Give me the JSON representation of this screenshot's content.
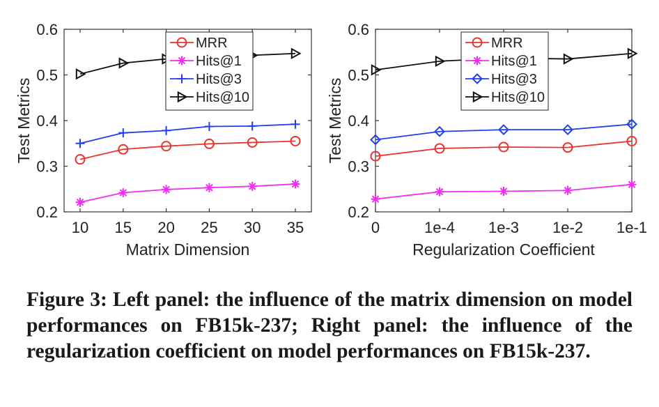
{
  "chart_data": [
    {
      "type": "line",
      "xlabel": "Matrix Dimension",
      "ylabel": "Test Metrics",
      "x": [
        "10",
        "15",
        "20",
        "25",
        "30",
        "35"
      ],
      "ylim": [
        0.2,
        0.6
      ],
      "yticks": [
        "0.2",
        "0.3",
        "0.4",
        "0.5",
        "0.6"
      ],
      "legend": "top-center",
      "series": [
        {
          "name": "MRR",
          "marker": "circle",
          "color": "#e8332e",
          "values": [
            0.315,
            0.337,
            0.344,
            0.349,
            0.352,
            0.355
          ]
        },
        {
          "name": "Hits@1",
          "marker": "asterisk",
          "color": "#ee2ef0",
          "values": [
            0.221,
            0.242,
            0.249,
            0.253,
            0.256,
            0.261
          ]
        },
        {
          "name": "Hits@3",
          "marker": "plus",
          "color": "#1f3ff0",
          "values": [
            0.35,
            0.373,
            0.378,
            0.387,
            0.388,
            0.392
          ]
        },
        {
          "name": "Hits@10",
          "marker": "triangle-right",
          "color": "#111111",
          "values": [
            0.502,
            0.526,
            0.535,
            0.54,
            0.543,
            0.547
          ]
        }
      ]
    },
    {
      "type": "line",
      "xlabel": "Regularization Coefficient",
      "ylabel": "Test Metrics",
      "x": [
        "0",
        "1e-4",
        "1e-3",
        "1e-2",
        "1e-1"
      ],
      "ylim": [
        0.2,
        0.6
      ],
      "yticks": [
        "0.2",
        "0.3",
        "0.4",
        "0.5",
        "0.6"
      ],
      "legend": "top-center",
      "series": [
        {
          "name": "MRR",
          "marker": "circle",
          "color": "#e8332e",
          "values": [
            0.322,
            0.339,
            0.342,
            0.341,
            0.355
          ]
        },
        {
          "name": "Hits@1",
          "marker": "asterisk",
          "color": "#ee2ef0",
          "values": [
            0.228,
            0.244,
            0.245,
            0.247,
            0.26
          ]
        },
        {
          "name": "Hits@3",
          "marker": "diamond",
          "color": "#1f3ff0",
          "values": [
            0.358,
            0.376,
            0.38,
            0.38,
            0.392
          ]
        },
        {
          "name": "Hits@10",
          "marker": "triangle-right",
          "color": "#111111",
          "values": [
            0.511,
            0.53,
            0.537,
            0.535,
            0.547
          ]
        }
      ]
    }
  ],
  "caption": "Figure 3: Left panel: the influence of the matrix dimension on model performances on FB15k-237; Right panel: the influence of the regularization coefficient on model performances on FB15k-237."
}
